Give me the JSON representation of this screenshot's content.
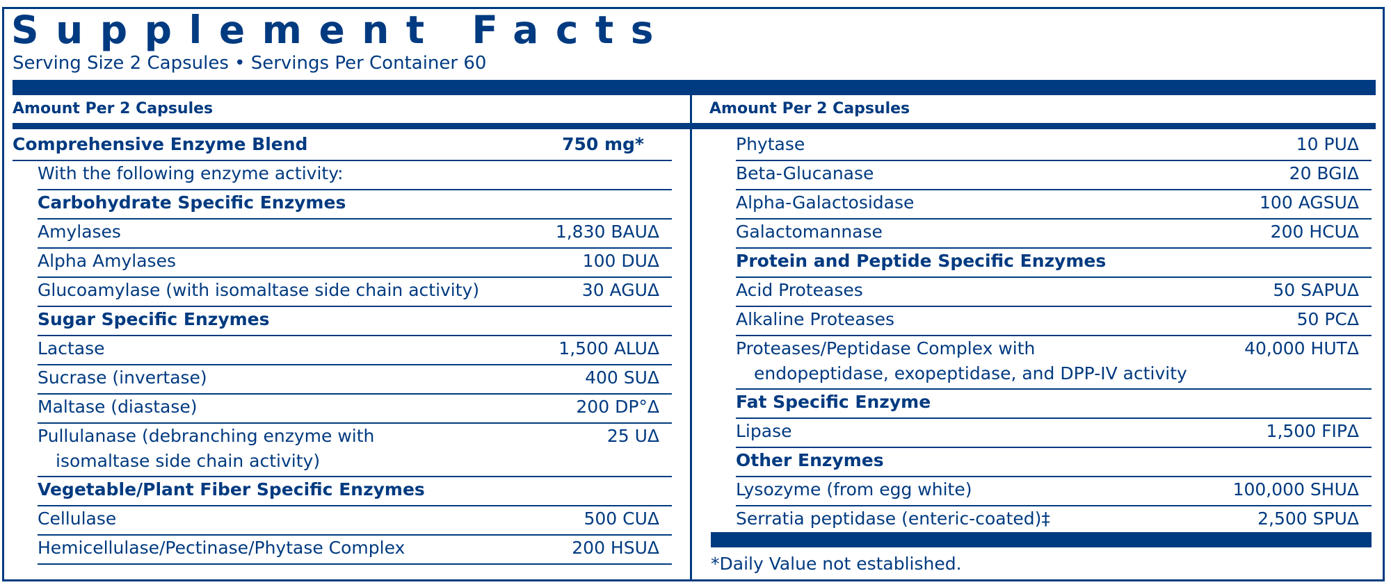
{
  "title": "Supplement Facts",
  "serving": "Serving Size 2 Capsules • Servings Per Container 60",
  "amount_header_left": "Amount Per 2 Capsules",
  "amount_header_right": "Amount Per 2 Capsules",
  "left_rows": [
    {
      "name": "Comprehensive Enzyme Blend",
      "amount": "750 mg*",
      "style": "blend"
    },
    {
      "name": "With the following enzyme activity:",
      "amount": "",
      "style": "indent"
    },
    {
      "name": "Carbohydrate Specific Enzymes",
      "amount": "",
      "style": "heading"
    },
    {
      "name": "Amylases",
      "amount": "1,830 BAUΔ",
      "style": "indent"
    },
    {
      "name": "Alpha Amylases",
      "amount": "100 DUΔ",
      "style": "indent"
    },
    {
      "name": "Glucoamylase (with isomaltase side chain activity)",
      "amount": "30 AGUΔ",
      "style": "indent"
    },
    {
      "name": "Sugar Specific Enzymes",
      "amount": "",
      "style": "heading"
    },
    {
      "name": "Lactase",
      "amount": "1,500 ALUΔ",
      "style": "indent"
    },
    {
      "name": "Sucrase (invertase)",
      "amount": "400 SUΔ",
      "style": "indent"
    },
    {
      "name": "Maltase (diastase)",
      "amount": "200 DP°Δ",
      "style": "indent"
    },
    {
      "name": "Pullulanase (debranching enzyme with",
      "name2": "isomaltase side chain activity)",
      "amount": "25 UΔ",
      "style": "indent"
    },
    {
      "name": "Vegetable/Plant Fiber Specific Enzymes",
      "amount": "",
      "style": "heading"
    },
    {
      "name": "Cellulase",
      "amount": "500 CUΔ",
      "style": "indent"
    },
    {
      "name": "Hemicellulase/Pectinase/Phytase Complex",
      "amount": "200 HSUΔ",
      "style": "indent"
    }
  ],
  "right_rows": [
    {
      "name": "Phytase",
      "amount": "10 PUΔ",
      "style": "indent"
    },
    {
      "name": "Beta-Glucanase",
      "amount": "20 BGIΔ",
      "style": "indent"
    },
    {
      "name": "Alpha-Galactosidase",
      "amount": "100 AGSUΔ",
      "style": "indent"
    },
    {
      "name": "Galactomannase",
      "amount": "200 HCUΔ",
      "style": "indent"
    },
    {
      "name": "Protein and Peptide Specific Enzymes",
      "amount": "",
      "style": "heading"
    },
    {
      "name": "Acid Proteases",
      "amount": "50 SAPUΔ",
      "style": "indent"
    },
    {
      "name": "Alkaline Proteases",
      "amount": "50 PCΔ",
      "style": "indent"
    },
    {
      "name": "Proteases/Peptidase Complex with",
      "name2": "endopeptidase, exopeptidase, and DPP-IV activity",
      "amount": "40,000 HUTΔ",
      "style": "indent"
    },
    {
      "name": "Fat Specific Enzyme",
      "amount": "",
      "style": "heading"
    },
    {
      "name": "Lipase",
      "amount": "1,500 FIPΔ",
      "style": "indent"
    },
    {
      "name": "Other Enzymes",
      "amount": "",
      "style": "heading"
    },
    {
      "name": "Lysozyme (from egg white)",
      "amount": "100,000 SHUΔ",
      "style": "indent"
    },
    {
      "name": "Serratia peptidase (enteric-coated)‡",
      "amount": "2,500 SPUΔ",
      "style": "indent"
    }
  ],
  "footnote": "*Daily Value not established.",
  "colors": {
    "brand_blue": "#003a80"
  }
}
